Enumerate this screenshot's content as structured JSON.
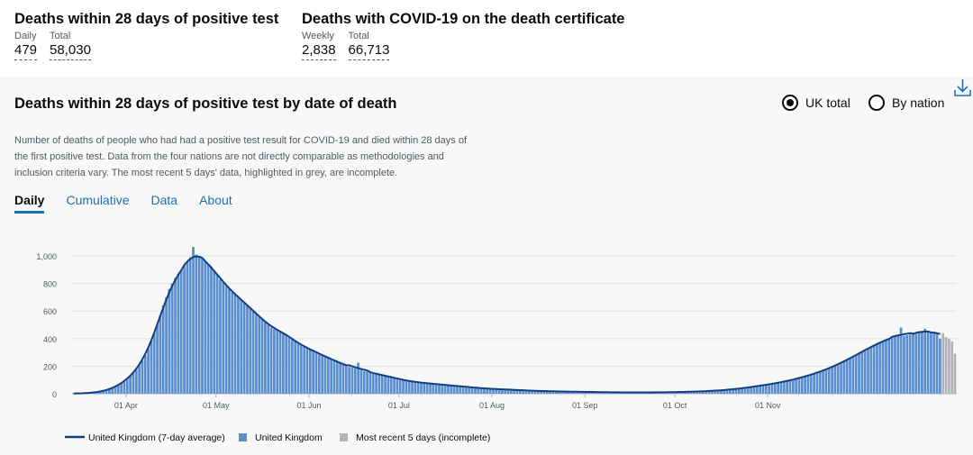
{
  "headlines": [
    {
      "title": "Deaths within 28 days of positive test",
      "m1_label": "Daily",
      "m1_value": "479",
      "m2_label": "Total",
      "m2_value": "58,030"
    },
    {
      "title": "Deaths with COVID-19 on the death certificate",
      "m1_label": "Weekly",
      "m1_value": "2,838",
      "m2_label": "Total",
      "m2_value": "66,713"
    }
  ],
  "card": {
    "title": "Deaths within 28 days of positive test by date of death",
    "radio_uk": "UK total",
    "radio_nation": "By nation",
    "description": "Number of deaths of people who had had a positive test result for COVID-19 and died within 28 days of the first positive test. Data from the four nations are not directly comparable as methodologies and inclusion criteria vary. The most recent 5 days' data, highlighted in grey, are incomplete.",
    "tabs": [
      "Daily",
      "Cumulative",
      "Data",
      "About"
    ]
  },
  "colors": {
    "bar": "#5b8ecf",
    "line": "#12407f",
    "incomplete": "#b1b4b6",
    "link": "#1d70b8"
  },
  "chart_data": {
    "type": "bar",
    "ylim": [
      0,
      1000
    ],
    "y_ticks": [
      "0",
      "200",
      "400",
      "600",
      "800",
      "1,000"
    ],
    "x_ticks": [
      "01 Apr",
      "01 May",
      "01 Jun",
      "01 Jul",
      "01 Aug",
      "01 Sep",
      "01 Oct",
      "01 Nov"
    ],
    "incomplete_days": 5,
    "series": [
      {
        "name": "United Kingdom (7-day average)",
        "kind": "line"
      },
      {
        "name": "United Kingdom",
        "kind": "bar"
      },
      {
        "name": "Most recent 5 days (incomplete)",
        "kind": "bar-incomplete"
      }
    ],
    "values": [
      1,
      2,
      2,
      3,
      4,
      5,
      7,
      9,
      12,
      15,
      20,
      25,
      32,
      40,
      50,
      62,
      75,
      90,
      108,
      128,
      150,
      175,
      205,
      240,
      280,
      330,
      385,
      440,
      500,
      570,
      640,
      700,
      760,
      800,
      840,
      870,
      900,
      930,
      960,
      990,
      1065,
      1010,
      1000,
      990,
      960,
      940,
      920,
      890,
      860,
      830,
      810,
      780,
      760,
      740,
      720,
      700,
      680,
      660,
      640,
      620,
      600,
      580,
      560,
      540,
      520,
      500,
      480,
      470,
      460,
      455,
      445,
      430,
      410,
      395,
      380,
      365,
      350,
      340,
      335,
      320,
      310,
      300,
      290,
      280,
      270,
      260,
      250,
      240,
      230,
      225,
      215,
      205,
      195,
      190,
      185,
      225,
      175,
      165,
      160,
      155,
      150,
      145,
      140,
      135,
      130,
      125,
      120,
      115,
      110,
      105,
      100,
      95,
      92,
      88,
      85,
      82,
      80,
      78,
      76,
      74,
      72,
      70,
      68,
      66,
      64,
      62,
      60,
      58,
      56,
      54,
      52,
      50,
      48,
      46,
      44,
      42,
      40,
      38,
      37,
      36,
      35,
      34,
      33,
      32,
      31,
      30,
      29,
      28,
      27,
      26,
      25,
      24,
      23,
      22,
      21,
      20,
      20,
      19,
      19,
      18,
      18,
      17,
      17,
      16,
      16,
      15,
      15,
      15,
      14,
      14,
      14,
      13,
      13,
      13,
      12,
      12,
      12,
      11,
      11,
      11,
      11,
      10,
      10,
      10,
      10,
      10,
      10,
      10,
      10,
      10,
      10,
      10,
      10,
      10,
      10,
      10,
      11,
      11,
      11,
      12,
      12,
      12,
      13,
      13,
      14,
      14,
      15,
      15,
      16,
      17,
      18,
      19,
      20,
      21,
      22,
      24,
      25,
      27,
      29,
      31,
      33,
      35,
      37,
      40,
      43,
      46,
      49,
      52,
      55,
      58,
      62,
      65,
      69,
      72,
      76,
      80,
      84,
      88,
      93,
      98,
      103,
      108,
      114,
      120,
      126,
      132,
      139,
      146,
      153,
      161,
      169,
      177,
      186,
      195,
      205,
      215,
      225,
      236,
      247,
      258,
      270,
      282,
      294,
      306,
      318,
      330,
      341,
      352,
      362,
      372,
      382,
      391,
      400,
      408,
      415,
      421,
      480,
      420,
      425,
      430,
      435,
      440,
      445,
      450,
      472,
      455,
      450,
      445,
      440,
      400,
      440,
      410,
      400,
      380,
      290
    ]
  }
}
